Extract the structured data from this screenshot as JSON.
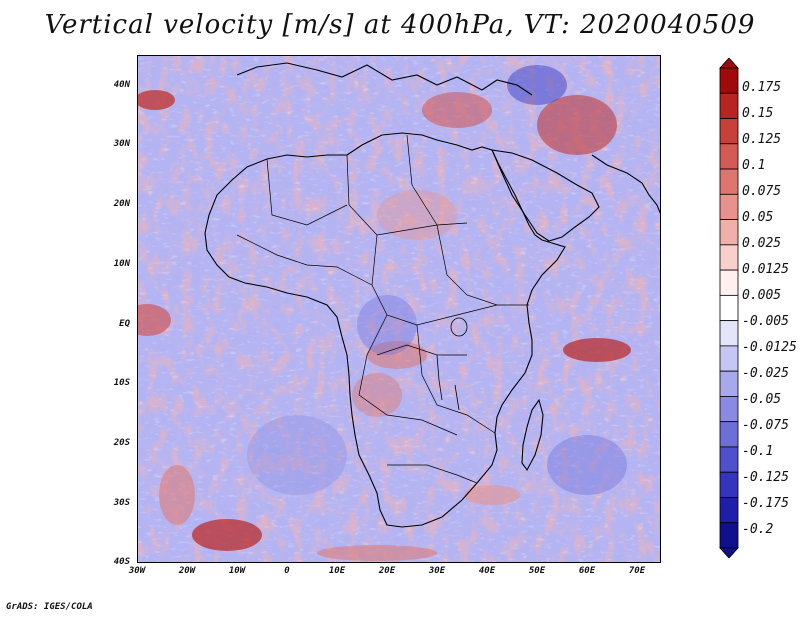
{
  "title": "Vertical velocity [m/s] at 400hPa, VT: 2020040509",
  "credit": "GrADS: IGES/COLA",
  "map": {
    "region": "Africa",
    "lon_range": [
      -30,
      75
    ],
    "lat_range": [
      -40,
      45
    ],
    "lat_ticks": [
      {
        "label": "40N",
        "value": 40
      },
      {
        "label": "30N",
        "value": 30
      },
      {
        "label": "20N",
        "value": 20
      },
      {
        "label": "10N",
        "value": 10
      },
      {
        "label": "EQ",
        "value": 0
      },
      {
        "label": "10S",
        "value": -10
      },
      {
        "label": "20S",
        "value": -20
      },
      {
        "label": "30S",
        "value": -30
      },
      {
        "label": "40S",
        "value": -40
      }
    ],
    "lon_ticks": [
      {
        "label": "30W",
        "value": -30
      },
      {
        "label": "20W",
        "value": -20
      },
      {
        "label": "10W",
        "value": -10
      },
      {
        "label": "0",
        "value": 0
      },
      {
        "label": "10E",
        "value": 10
      },
      {
        "label": "20E",
        "value": 20
      },
      {
        "label": "30E",
        "value": 30
      },
      {
        "label": "40E",
        "value": 40
      },
      {
        "label": "50E",
        "value": 50
      },
      {
        "label": "60E",
        "value": 60
      },
      {
        "label": "70E",
        "value": 70
      }
    ]
  },
  "colorbar": {
    "labels": [
      "0.175",
      "0.15",
      "0.125",
      "0.1",
      "0.075",
      "0.05",
      "0.025",
      "0.0125",
      "0.005",
      "-0.005",
      "-0.0125",
      "-0.025",
      "-0.05",
      "-0.075",
      "-0.1",
      "-0.125",
      "-0.175",
      "-0.2"
    ],
    "colors": [
      "#a00a0a",
      "#b8241f",
      "#c8403a",
      "#d45b55",
      "#de7670",
      "#e8928c",
      "#f0b0aa",
      "#f7cfcb",
      "#fdf0ee",
      "#ffffff",
      "#e4e4fb",
      "#c6c6f4",
      "#a8a8ec",
      "#8a8ae3",
      "#6e6ed9",
      "#5050cc",
      "#3434bc",
      "#1e1ea8",
      "#10108c"
    ]
  },
  "colors": {
    "base_field": "#b0b0f0",
    "ascent": "#e06a66",
    "descent": "#5a5ad4",
    "coastline": "#000000"
  }
}
